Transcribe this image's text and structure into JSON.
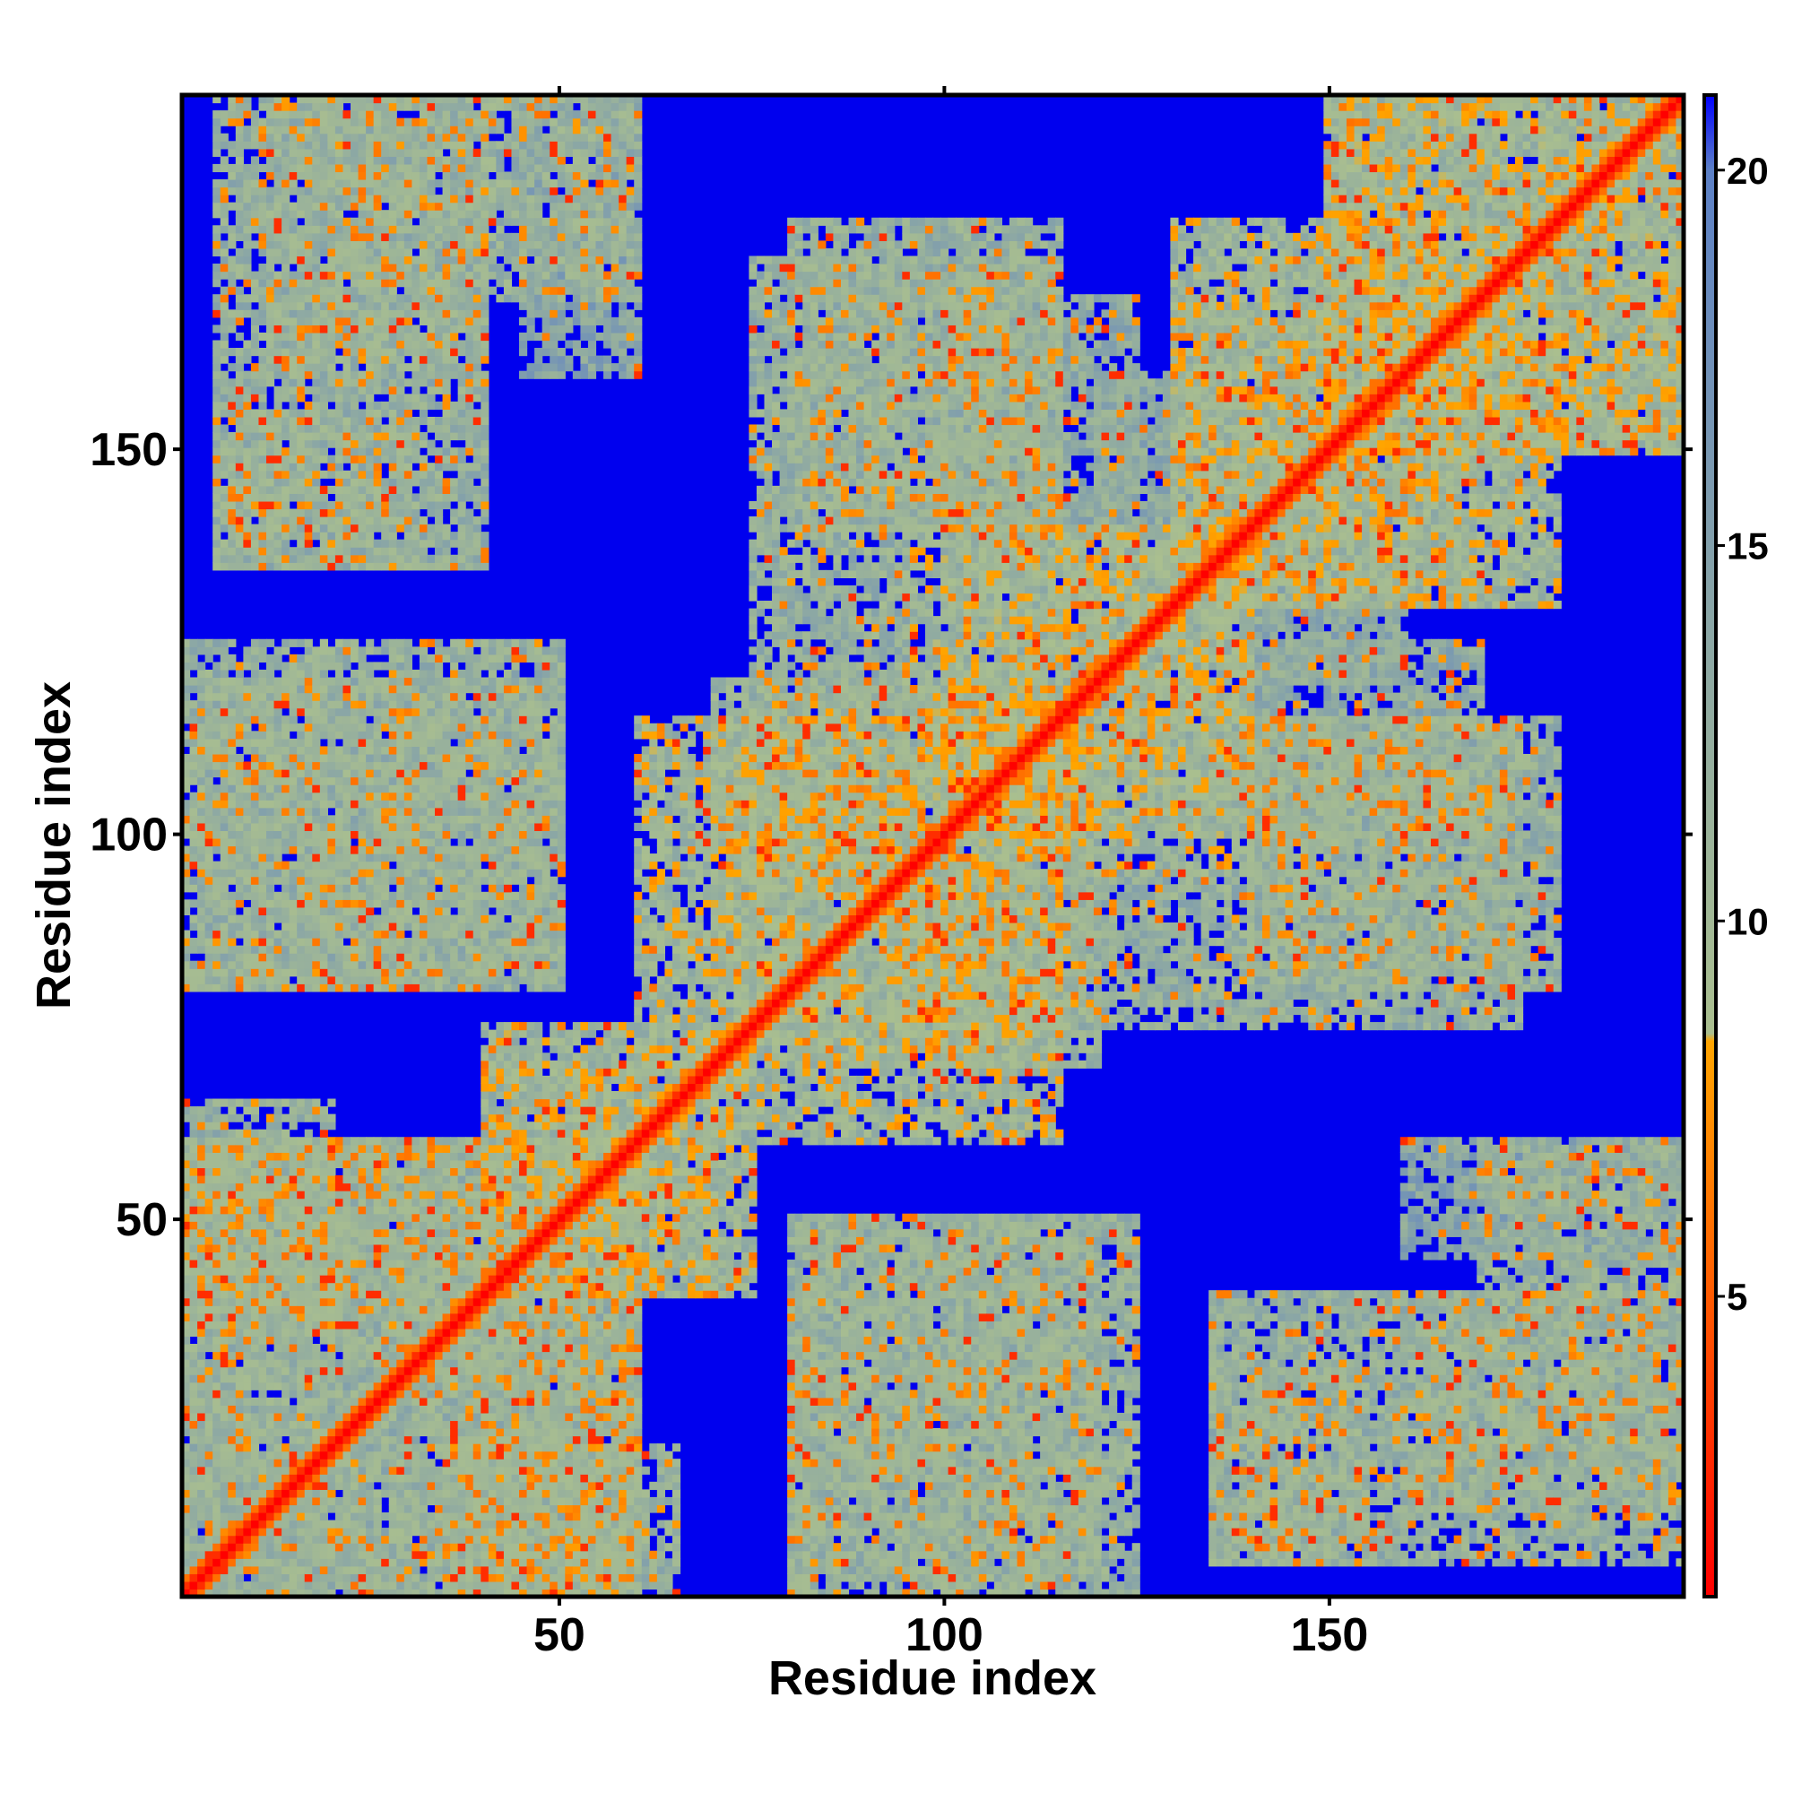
{
  "chart_data": {
    "type": "heatmap",
    "xlabel": "Residue index",
    "ylabel": "Residue index",
    "xlim": [
      1,
      196
    ],
    "ylim": [
      1,
      196
    ],
    "x_ticks": [
      50,
      100,
      150
    ],
    "y_ticks": [
      50,
      100,
      150
    ],
    "n_residues": 196,
    "colorbar": {
      "range": [
        1,
        21
      ],
      "ticks": [
        5,
        10,
        15,
        20
      ],
      "stops": [
        {
          "value": 1,
          "color": "#ff0000"
        },
        {
          "value": 5,
          "color": "#ff5a00"
        },
        {
          "value": 8.4,
          "color": "#ffa500"
        },
        {
          "value": 8.5,
          "color": "#aabf8f"
        },
        {
          "value": 14,
          "color": "#8aa6a6"
        },
        {
          "value": 20,
          "color": "#5c80c6"
        },
        {
          "value": 21,
          "color": "#0000ff"
        }
      ]
    },
    "background_value": 21,
    "background_color": "#0000ee",
    "diagonal_value": 1,
    "contact_blocks": [
      {
        "x": [
          1,
          60
        ],
        "y": [
          1,
          60
        ],
        "value": 12
      },
      {
        "x": [
          36,
          60
        ],
        "y": [
          1,
          40
        ],
        "value": 12
      },
      {
        "x": [
          80,
          120
        ],
        "y": [
          3,
          50
        ],
        "value": 12
      },
      {
        "x": [
          135,
          155
        ],
        "y": [
          5,
          30
        ],
        "value": 12
      },
      {
        "x": [
          160,
          196
        ],
        "y": [
          12,
          40
        ],
        "value": 12
      },
      {
        "x": [
          160,
          196
        ],
        "y": [
          45,
          60
        ],
        "value": 14
      },
      {
        "x": [
          1,
          20
        ],
        "y": [
          35,
          65
        ],
        "value": 12
      },
      {
        "x": [
          40,
          75
        ],
        "y": [
          40,
          70
        ],
        "value": 11
      },
      {
        "x": [
          70,
          115
        ],
        "y": [
          60,
          120
        ],
        "value": 11
      },
      {
        "x": [
          95,
          140
        ],
        "y": [
          75,
          95
        ],
        "value": 12
      },
      {
        "x": [
          140,
          175
        ],
        "y": [
          75,
          115
        ],
        "value": 12
      },
      {
        "x": [
          1,
          50
        ],
        "y": [
          80,
          125
        ],
        "value": 12
      },
      {
        "x": [
          100,
          140
        ],
        "y": [
          95,
          140
        ],
        "value": 11
      },
      {
        "x": [
          130,
          170
        ],
        "y": [
          130,
          180
        ],
        "value": 11
      },
      {
        "x": [
          150,
          196
        ],
        "y": [
          150,
          196
        ],
        "value": 11
      },
      {
        "x": [
          5,
          40
        ],
        "y": [
          135,
          196
        ],
        "value": 12
      },
      {
        "x": [
          40,
          60
        ],
        "y": [
          170,
          196
        ],
        "value": 12
      },
      {
        "x": [
          80,
          115
        ],
        "y": [
          140,
          180
        ],
        "value": 12
      },
      {
        "x": [
          120,
          145
        ],
        "y": [
          140,
          160
        ],
        "value": 13
      },
      {
        "x": [
          140,
          170
        ],
        "y": [
          100,
          125
        ],
        "value": 13
      }
    ]
  }
}
